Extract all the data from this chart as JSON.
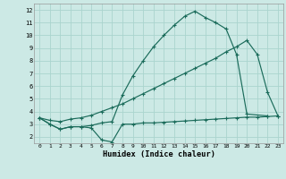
{
  "xlabel": "Humidex (Indice chaleur)",
  "xlim": [
    -0.5,
    23.5
  ],
  "ylim": [
    1.5,
    12.5
  ],
  "yticks": [
    2,
    3,
    4,
    5,
    6,
    7,
    8,
    9,
    10,
    11,
    12
  ],
  "xticks": [
    0,
    1,
    2,
    3,
    4,
    5,
    6,
    7,
    8,
    9,
    10,
    11,
    12,
    13,
    14,
    15,
    16,
    17,
    18,
    19,
    20,
    21,
    22,
    23
  ],
  "bg_color": "#cce9e5",
  "grid_color": "#aad4ce",
  "line_color": "#1a6b5a",
  "line1_x": [
    0,
    1,
    2,
    3,
    4,
    5,
    6,
    7,
    8,
    9,
    10,
    11,
    12,
    13,
    14,
    15,
    16,
    17,
    18,
    19,
    20,
    21,
    22,
    23
  ],
  "line1_y": [
    3.5,
    3.0,
    2.6,
    2.8,
    2.8,
    2.7,
    1.75,
    1.6,
    3.0,
    3.0,
    3.1,
    3.1,
    3.15,
    3.2,
    3.25,
    3.3,
    3.35,
    3.4,
    3.45,
    3.5,
    3.55,
    3.55,
    3.6,
    3.65
  ],
  "line2_x": [
    0,
    1,
    2,
    3,
    4,
    5,
    6,
    7,
    8,
    9,
    10,
    11,
    12,
    13,
    14,
    15,
    16,
    17,
    18,
    19,
    20,
    22
  ],
  "line2_y": [
    3.5,
    3.0,
    2.6,
    2.8,
    2.8,
    2.9,
    3.1,
    3.2,
    5.3,
    6.8,
    8.0,
    9.1,
    10.0,
    10.8,
    11.5,
    11.9,
    11.4,
    11.0,
    10.5,
    8.5,
    3.8,
    3.65
  ],
  "line3_x": [
    0,
    1,
    2,
    3,
    4,
    5,
    6,
    7,
    8,
    9,
    10,
    11,
    12,
    13,
    14,
    15,
    16,
    17,
    18,
    19,
    20,
    21,
    22,
    23
  ],
  "line3_y": [
    3.5,
    3.3,
    3.2,
    3.4,
    3.5,
    3.7,
    4.0,
    4.3,
    4.6,
    5.0,
    5.4,
    5.8,
    6.2,
    6.6,
    7.0,
    7.4,
    7.8,
    8.2,
    8.7,
    9.1,
    9.6,
    8.5,
    5.5,
    3.65
  ]
}
